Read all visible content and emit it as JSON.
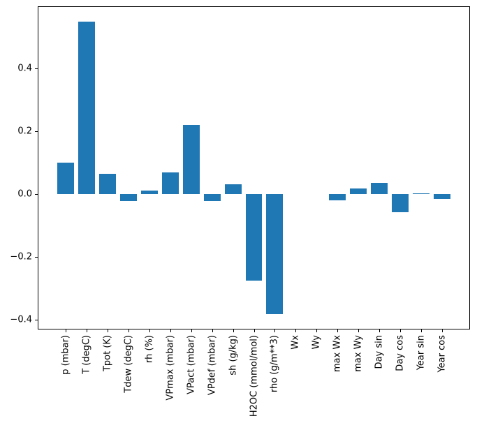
{
  "chart_data": {
    "type": "bar",
    "title": "",
    "xlabel": "",
    "ylabel": "",
    "categories": [
      "p (mbar)",
      "T (degC)",
      "Tpot (K)",
      "Tdew (degC)",
      "rh (%)",
      "VPmax (mbar)",
      "VPact (mbar)",
      "VPdef (mbar)",
      "sh (g/kg)",
      "H2OC (mmol/mol)",
      "rho (g/m**3)",
      "Wx",
      "Wy",
      "max Wx",
      "max Wy",
      "Day sin",
      "Day cos",
      "Year sin",
      "Year cos"
    ],
    "values": [
      0.101,
      0.55,
      0.065,
      -0.021,
      0.011,
      0.068,
      0.22,
      -0.021,
      0.032,
      -0.276,
      -0.383,
      0.0,
      0.0,
      -0.02,
      0.017,
      0.036,
      -0.057,
      0.002,
      -0.016
    ],
    "yticks": [
      -0.4,
      -0.2,
      0.0,
      0.2,
      0.4
    ],
    "ytick_labels": [
      "−0.4",
      "−0.2",
      "0.0",
      "0.2",
      "0.4"
    ],
    "ylim": [
      -0.431,
      0.598
    ],
    "xlim": [
      -1.34,
      19.34
    ],
    "bar_width_units": 0.8,
    "grid": false,
    "legend": null,
    "bar_color": "#1f77b4",
    "axis_color": "#000000",
    "text_color": "#000000",
    "background_color": "#ffffff"
  }
}
